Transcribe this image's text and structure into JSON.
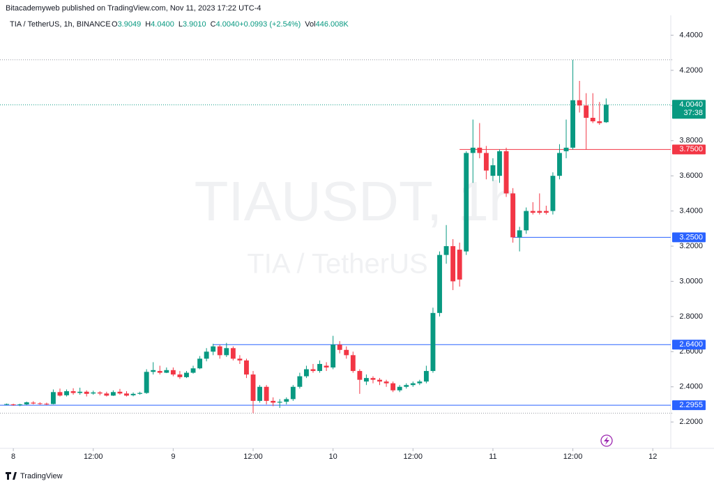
{
  "chart_data": {
    "type": "candlestick",
    "publisher": "Bitacademyweb published on TradingView.com, Nov 11, 2023 17:22 UTC-4",
    "title": "TIA / TetherUS, 1h, BINANCE",
    "legend": [
      {
        "key": "O",
        "value": "3.9049"
      },
      {
        "key": "H",
        "value": "4.0400"
      },
      {
        "key": "L",
        "value": "3.9010"
      },
      {
        "key": "C",
        "value": "4.0040"
      },
      {
        "key": "",
        "value": "+0.0993 (+2.54%)"
      },
      {
        "key": "Vol",
        "value": "446.008K"
      }
    ],
    "watermark": "TIAUSDT, 1h",
    "watermark_sub": "TIA / TetherUS",
    "footer": "TradingView",
    "up_color": "#089981",
    "down_color": "#f23645",
    "open": [
      2.3,
      2.3,
      2.296,
      2.3,
      2.31,
      2.306,
      2.304,
      2.302,
      2.37,
      2.352,
      2.375,
      2.365,
      2.372,
      2.362,
      2.368,
      2.362,
      2.35,
      2.372,
      2.362,
      2.352,
      2.36,
      2.365,
      2.485,
      2.49,
      2.48,
      2.495,
      2.47,
      2.455,
      2.48,
      2.505,
      2.56,
      2.6,
      2.63,
      2.58,
      2.62,
      2.56,
      2.55,
      2.47,
      2.32,
      2.4,
      2.32,
      2.31,
      2.315,
      2.33,
      2.4,
      2.46,
      2.5,
      2.49,
      2.52,
      2.51,
      2.64,
      2.61,
      2.58,
      2.49,
      2.43,
      2.45,
      2.44,
      2.43,
      2.42,
      2.38,
      2.4,
      2.41,
      2.42,
      2.43,
      2.49,
      2.82,
      3.15,
      3.2,
      3.18,
      3.17,
      3.73,
      3.76,
      3.73,
      3.6,
      3.6,
      3.74,
      3.5,
      3.25,
      3.29,
      3.4,
      3.4,
      3.4,
      3.4,
      3.6,
      3.74,
      3.76,
      4.03,
      4.0,
      3.93,
      3.91,
      3.9049
    ],
    "high": [
      2.305,
      2.304,
      2.304,
      2.316,
      2.318,
      2.312,
      2.31,
      2.385,
      2.39,
      2.385,
      2.392,
      2.395,
      2.38,
      2.378,
      2.375,
      2.372,
      2.38,
      2.388,
      2.375,
      2.368,
      2.372,
      2.5,
      2.54,
      2.52,
      2.51,
      2.51,
      2.49,
      2.49,
      2.52,
      2.575,
      2.62,
      2.645,
      2.64,
      2.65,
      2.63,
      2.58,
      2.56,
      2.49,
      2.41,
      2.41,
      2.34,
      2.33,
      2.34,
      2.41,
      2.48,
      2.52,
      2.53,
      2.55,
      2.54,
      2.69,
      2.66,
      2.63,
      2.6,
      2.5,
      2.47,
      2.46,
      2.45,
      2.44,
      2.43,
      2.41,
      2.42,
      2.43,
      2.44,
      2.52,
      2.85,
      3.17,
      3.32,
      3.24,
      3.22,
      3.74,
      3.92,
      3.9,
      3.77,
      3.7,
      3.75,
      3.76,
      3.53,
      3.31,
      3.42,
      3.45,
      3.5,
      3.43,
      3.62,
      3.78,
      3.92,
      4.26,
      4.14,
      4.07,
      4.07,
      4.02,
      4.04
    ],
    "low": [
      2.296,
      2.292,
      2.29,
      2.296,
      2.3,
      2.298,
      2.296,
      2.3,
      2.345,
      2.345,
      2.355,
      2.355,
      2.345,
      2.355,
      2.352,
      2.345,
      2.348,
      2.355,
      2.345,
      2.346,
      2.355,
      2.36,
      2.47,
      2.47,
      2.478,
      2.46,
      2.445,
      2.45,
      2.475,
      2.5,
      2.545,
      2.58,
      2.56,
      2.57,
      2.55,
      2.53,
      2.45,
      2.25,
      2.31,
      2.3,
      2.29,
      2.28,
      2.3,
      2.32,
      2.39,
      2.45,
      2.48,
      2.48,
      2.49,
      2.5,
      2.59,
      2.56,
      2.48,
      2.36,
      2.41,
      2.42,
      2.41,
      2.4,
      2.37,
      2.37,
      2.39,
      2.4,
      2.41,
      2.42,
      2.48,
      2.8,
      3.1,
      2.95,
      2.97,
      3.15,
      3.56,
      3.7,
      3.58,
      3.57,
      3.56,
      3.48,
      3.22,
      3.17,
      3.27,
      3.38,
      3.38,
      3.38,
      3.38,
      3.58,
      3.7,
      3.75,
      3.96,
      3.75,
      3.9,
      3.89,
      3.901
    ],
    "close": [
      2.302,
      2.298,
      2.3,
      2.312,
      2.305,
      2.304,
      2.302,
      2.37,
      2.35,
      2.375,
      2.365,
      2.372,
      2.36,
      2.368,
      2.362,
      2.35,
      2.37,
      2.362,
      2.35,
      2.36,
      2.365,
      2.485,
      2.495,
      2.48,
      2.495,
      2.47,
      2.455,
      2.48,
      2.505,
      2.56,
      2.6,
      2.63,
      2.58,
      2.62,
      2.56,
      2.55,
      2.47,
      2.32,
      2.4,
      2.32,
      2.31,
      2.315,
      2.33,
      2.4,
      2.46,
      2.5,
      2.49,
      2.53,
      2.51,
      2.64,
      2.61,
      2.58,
      2.49,
      2.44,
      2.45,
      2.44,
      2.43,
      2.42,
      2.38,
      2.4,
      2.41,
      2.42,
      2.43,
      2.49,
      2.82,
      3.15,
      3.2,
      3.0,
      3.01,
      3.73,
      3.76,
      3.73,
      3.63,
      3.66,
      3.74,
      3.5,
      3.25,
      3.29,
      3.4,
      3.39,
      3.39,
      3.39,
      3.6,
      3.73,
      3.76,
      4.03,
      4.0,
      3.93,
      3.91,
      3.9,
      4.004
    ],
    "xlim": [
      -1,
      99.7
    ],
    "xticks": [
      {
        "value": 1,
        "label": "8"
      },
      {
        "value": 13,
        "label": "12:00"
      },
      {
        "value": 25,
        "label": "9"
      },
      {
        "value": 37,
        "label": "12:00"
      },
      {
        "value": 49,
        "label": "10"
      },
      {
        "value": 61,
        "label": "12:00"
      },
      {
        "value": 73,
        "label": "11"
      },
      {
        "value": 85,
        "label": "12:00"
      },
      {
        "value": 97,
        "label": "12"
      }
    ],
    "ylim": [
      2.05,
      4.6
    ],
    "yticks": [
      {
        "value": 2.2,
        "label": "2.2000"
      },
      {
        "value": 2.4,
        "label": "2.4000"
      },
      {
        "value": 2.6,
        "label": "2.6000"
      },
      {
        "value": 2.8,
        "label": "2.8000"
      },
      {
        "value": 3.0,
        "label": "3.0000"
      },
      {
        "value": 3.2,
        "label": "3.2000"
      },
      {
        "value": 3.4,
        "label": "3.4000"
      },
      {
        "value": 3.6,
        "label": "3.6000"
      },
      {
        "value": 3.8,
        "label": "3.8000"
      },
      {
        "value": 4.0,
        "label": "4.0000"
      },
      {
        "value": 4.2,
        "label": "4.2000"
      },
      {
        "value": 4.4,
        "label": "4.4000"
      }
    ],
    "levels": [
      {
        "value": 3.75,
        "label": "3.7500",
        "color": "#f23645",
        "start": 68
      },
      {
        "value": 3.25,
        "label": "3.2500",
        "color": "#2962ff",
        "start": 76
      },
      {
        "value": 2.64,
        "label": "2.6400",
        "color": "#2962ff",
        "start": 31
      },
      {
        "value": 2.2955,
        "label": "2.2955",
        "color": "#2962ff",
        "start": -1
      }
    ],
    "price_line": {
      "value": 4.004,
      "label": "4.0040",
      "countdown": "37:38"
    },
    "grid": false
  }
}
